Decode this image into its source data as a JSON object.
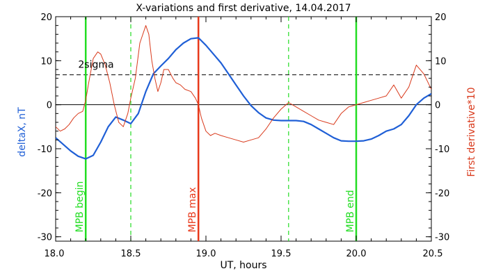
{
  "chart_data": {
    "type": "line",
    "title": "X-variations and first derivative, 14.04.2017",
    "xlabel": "UT, hours",
    "ylabel_left": "deltaX, nT",
    "ylabel_right": "First derivative*10",
    "xlim": [
      18.0,
      20.5
    ],
    "ylim": [
      -31,
      20
    ],
    "x_ticks": [
      18.0,
      18.5,
      19.0,
      19.5,
      20.0,
      20.5
    ],
    "x_tick_labels": [
      "18.0",
      "18.5",
      "19.0",
      "19.5",
      "20.0",
      "20.5"
    ],
    "y_ticks": [
      -30,
      -20,
      -10,
      0,
      10,
      20
    ],
    "y_tick_labels": [
      "-30",
      "-20",
      "-10",
      "0",
      "10",
      "20"
    ],
    "colors": {
      "blue": "#1f5fd6",
      "red": "#d93a1c",
      "green": "#22dd22",
      "black": "#000000"
    },
    "reference_lines": [
      {
        "y": 0,
        "style": "solid",
        "color": "#000000"
      },
      {
        "y": 6.8,
        "style": "dashed",
        "color": "#000000",
        "label": "2sigma"
      }
    ],
    "vertical_markers": [
      {
        "x": 18.2,
        "label": "MPB begin",
        "color": "#22dd22",
        "style": "solid"
      },
      {
        "x": 18.5,
        "label": "",
        "color": "#22dd22",
        "style": "dashed"
      },
      {
        "x": 18.95,
        "label": "MPB max",
        "color": "#e8381a",
        "style": "solid"
      },
      {
        "x": 19.55,
        "label": "",
        "color": "#22dd22",
        "style": "dashed"
      },
      {
        "x": 20.0,
        "label": "MPB end",
        "color": "#22dd22",
        "style": "solid"
      }
    ],
    "series": [
      {
        "name": "deltaX, nT",
        "color": "#1f5fd6",
        "x": [
          18.0,
          18.05,
          18.1,
          18.15,
          18.2,
          18.25,
          18.3,
          18.35,
          18.4,
          18.45,
          18.5,
          18.55,
          18.6,
          18.65,
          18.7,
          18.75,
          18.8,
          18.85,
          18.9,
          18.95,
          19.0,
          19.05,
          19.1,
          19.15,
          19.2,
          19.25,
          19.3,
          19.35,
          19.4,
          19.45,
          19.5,
          19.55,
          19.6,
          19.65,
          19.7,
          19.75,
          19.8,
          19.85,
          19.9,
          19.95,
          20.0,
          20.05,
          20.1,
          20.15,
          20.2,
          20.25,
          20.3,
          20.35,
          20.4,
          20.45,
          20.5
        ],
        "values": [
          -7.5,
          -9.0,
          -10.5,
          -11.7,
          -12.3,
          -11.5,
          -8.5,
          -5.0,
          -2.8,
          -3.5,
          -4.3,
          -2.0,
          3.0,
          7.0,
          8.8,
          10.5,
          12.5,
          14.0,
          15.0,
          15.2,
          13.5,
          11.5,
          9.5,
          7.0,
          4.5,
          2.0,
          -0.2,
          -1.8,
          -3.0,
          -3.5,
          -3.6,
          -3.6,
          -3.6,
          -3.8,
          -4.5,
          -5.5,
          -6.5,
          -7.5,
          -8.2,
          -8.3,
          -8.3,
          -8.2,
          -7.8,
          -7.0,
          -6.0,
          -5.5,
          -4.5,
          -2.5,
          0.0,
          1.5,
          2.5
        ]
      },
      {
        "name": "First derivative*10",
        "color": "#d93a1c",
        "x": [
          18.0,
          18.03,
          18.06,
          18.09,
          18.12,
          18.15,
          18.18,
          18.2,
          18.22,
          18.25,
          18.28,
          18.3,
          18.33,
          18.36,
          18.39,
          18.42,
          18.45,
          18.48,
          18.5,
          18.53,
          18.56,
          18.6,
          18.62,
          18.64,
          18.66,
          18.68,
          18.7,
          18.72,
          18.75,
          18.78,
          18.8,
          18.83,
          18.86,
          18.9,
          18.93,
          18.95,
          18.97,
          19.0,
          19.03,
          19.06,
          19.1,
          19.15,
          19.2,
          19.25,
          19.3,
          19.35,
          19.4,
          19.45,
          19.5,
          19.55,
          19.6,
          19.65,
          19.7,
          19.75,
          19.8,
          19.85,
          19.9,
          19.95,
          20.0,
          20.05,
          20.1,
          20.15,
          20.2,
          20.25,
          20.3,
          20.35,
          20.4,
          20.45,
          20.5
        ],
        "values": [
          -5.0,
          -6.0,
          -5.5,
          -4.5,
          -3.0,
          -2.0,
          -1.5,
          1.0,
          5.0,
          10.5,
          12.0,
          11.5,
          9.0,
          5.0,
          0.0,
          -4.0,
          -5.0,
          -2.0,
          1.5,
          6.0,
          14.0,
          18.0,
          16.0,
          10.0,
          6.0,
          3.0,
          5.0,
          8.0,
          8.0,
          6.0,
          5.0,
          4.5,
          3.5,
          3.0,
          1.5,
          0.0,
          -3.0,
          -6.0,
          -7.0,
          -6.5,
          -7.0,
          -7.5,
          -8.0,
          -8.5,
          -8.0,
          -7.5,
          -5.5,
          -3.0,
          -1.0,
          0.5,
          -0.5,
          -1.5,
          -2.5,
          -3.5,
          -4.0,
          -4.5,
          -2.0,
          -0.5,
          0.0,
          0.5,
          1.0,
          1.5,
          2.0,
          4.5,
          1.5,
          4.0,
          9.0,
          7.0,
          3.5
        ]
      }
    ]
  }
}
